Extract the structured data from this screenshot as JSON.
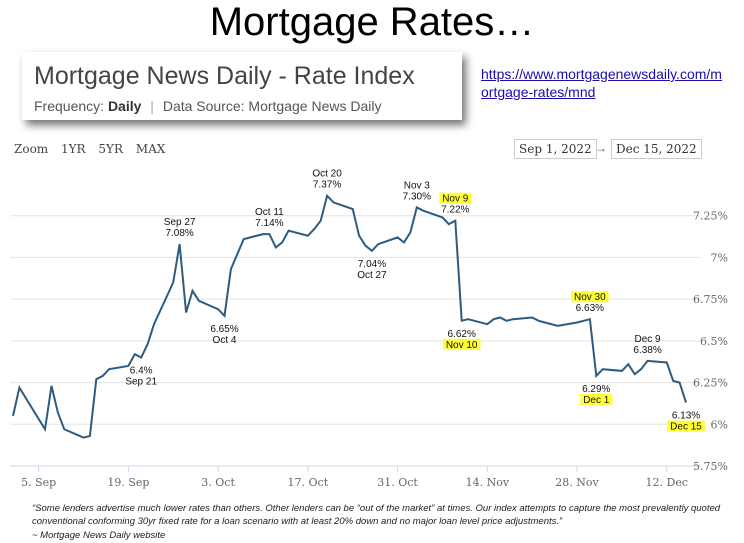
{
  "slide_title": "Mortgage Rates…",
  "card": {
    "title": "Mortgage News Daily - Rate Index",
    "frequency_label": "Frequency:",
    "frequency_value": "Daily",
    "source_label": "Data Source: Mortgage News Daily"
  },
  "link_text": "https://www.mortgagenewsdaily.com/mortgage-rates/mnd",
  "zoom": {
    "label": "Zoom",
    "options": [
      "1YR",
      "5YR",
      "MAX"
    ]
  },
  "date_range": {
    "from": "Sep 1, 2022",
    "arrow": "→",
    "to": "Dec 15, 2022"
  },
  "chart_data": {
    "type": "line",
    "color": "#2e5b80",
    "highlight_color": "#ffff33",
    "grid": true,
    "ylim": [
      5.75,
      7.5
    ],
    "y_ticks": [
      5.75,
      6.0,
      6.25,
      6.5,
      6.75,
      7.0,
      7.25
    ],
    "y_tick_labels": [
      "5.75%",
      "6%",
      "6.25%",
      "6.5%",
      "6.75%",
      "7%",
      "7.25%"
    ],
    "x_ticks": [
      "2022-09-05",
      "2022-09-19",
      "2022-10-03",
      "2022-10-17",
      "2022-10-31",
      "2022-11-14",
      "2022-11-28",
      "2022-12-12"
    ],
    "x_tick_labels": [
      "5. Sep",
      "19. Sep",
      "3. Oct",
      "17. Oct",
      "31. Oct",
      "14. Nov",
      "28. Nov",
      "12. Dec"
    ],
    "points": [
      {
        "date": "2022-09-01",
        "y": 6.05
      },
      {
        "date": "2022-09-02",
        "y": 6.22
      },
      {
        "date": "2022-09-06",
        "y": 5.97
      },
      {
        "date": "2022-09-07",
        "y": 6.23
      },
      {
        "date": "2022-09-08",
        "y": 6.07
      },
      {
        "date": "2022-09-09",
        "y": 5.97
      },
      {
        "date": "2022-09-12",
        "y": 5.92
      },
      {
        "date": "2022-09-13",
        "y": 5.93
      },
      {
        "date": "2022-09-14",
        "y": 6.27
      },
      {
        "date": "2022-09-15",
        "y": 6.29
      },
      {
        "date": "2022-09-16",
        "y": 6.33
      },
      {
        "date": "2022-09-19",
        "y": 6.35
      },
      {
        "date": "2022-09-20",
        "y": 6.42
      },
      {
        "date": "2022-09-21",
        "y": 6.4
      },
      {
        "date": "2022-09-22",
        "y": 6.48
      },
      {
        "date": "2022-09-23",
        "y": 6.6
      },
      {
        "date": "2022-09-26",
        "y": 6.85
      },
      {
        "date": "2022-09-27",
        "y": 7.08
      },
      {
        "date": "2022-09-28",
        "y": 6.67
      },
      {
        "date": "2022-09-29",
        "y": 6.8
      },
      {
        "date": "2022-09-30",
        "y": 6.74
      },
      {
        "date": "2022-10-03",
        "y": 6.69
      },
      {
        "date": "2022-10-04",
        "y": 6.65
      },
      {
        "date": "2022-10-05",
        "y": 6.93
      },
      {
        "date": "2022-10-06",
        "y": 7.02
      },
      {
        "date": "2022-10-07",
        "y": 7.11
      },
      {
        "date": "2022-10-10",
        "y": 7.14
      },
      {
        "date": "2022-10-11",
        "y": 7.14
      },
      {
        "date": "2022-10-12",
        "y": 7.06
      },
      {
        "date": "2022-10-13",
        "y": 7.09
      },
      {
        "date": "2022-10-14",
        "y": 7.16
      },
      {
        "date": "2022-10-17",
        "y": 7.13
      },
      {
        "date": "2022-10-18",
        "y": 7.17
      },
      {
        "date": "2022-10-19",
        "y": 7.22
      },
      {
        "date": "2022-10-20",
        "y": 7.37
      },
      {
        "date": "2022-10-21",
        "y": 7.33
      },
      {
        "date": "2022-10-24",
        "y": 7.29
      },
      {
        "date": "2022-10-25",
        "y": 7.13
      },
      {
        "date": "2022-10-26",
        "y": 7.07
      },
      {
        "date": "2022-10-27",
        "y": 7.04
      },
      {
        "date": "2022-10-28",
        "y": 7.08
      },
      {
        "date": "2022-10-31",
        "y": 7.12
      },
      {
        "date": "2022-11-01",
        "y": 7.09
      },
      {
        "date": "2022-11-02",
        "y": 7.15
      },
      {
        "date": "2022-11-03",
        "y": 7.3
      },
      {
        "date": "2022-11-04",
        "y": 7.28
      },
      {
        "date": "2022-11-07",
        "y": 7.24
      },
      {
        "date": "2022-11-08",
        "y": 7.2
      },
      {
        "date": "2022-11-09",
        "y": 7.22
      },
      {
        "date": "2022-11-10",
        "y": 6.62
      },
      {
        "date": "2022-11-11",
        "y": 6.63
      },
      {
        "date": "2022-11-14",
        "y": 6.6
      },
      {
        "date": "2022-11-15",
        "y": 6.63
      },
      {
        "date": "2022-11-16",
        "y": 6.64
      },
      {
        "date": "2022-11-17",
        "y": 6.62
      },
      {
        "date": "2022-11-18",
        "y": 6.63
      },
      {
        "date": "2022-11-21",
        "y": 6.64
      },
      {
        "date": "2022-11-22",
        "y": 6.62
      },
      {
        "date": "2022-11-23",
        "y": 6.61
      },
      {
        "date": "2022-11-25",
        "y": 6.59
      },
      {
        "date": "2022-11-28",
        "y": 6.61
      },
      {
        "date": "2022-11-30",
        "y": 6.63
      },
      {
        "date": "2022-12-01",
        "y": 6.29
      },
      {
        "date": "2022-12-02",
        "y": 6.33
      },
      {
        "date": "2022-12-05",
        "y": 6.32
      },
      {
        "date": "2022-12-06",
        "y": 6.36
      },
      {
        "date": "2022-12-07",
        "y": 6.3
      },
      {
        "date": "2022-12-08",
        "y": 6.33
      },
      {
        "date": "2022-12-09",
        "y": 6.38
      },
      {
        "date": "2022-12-12",
        "y": 6.37
      },
      {
        "date": "2022-12-13",
        "y": 6.26
      },
      {
        "date": "2022-12-14",
        "y": 6.25
      },
      {
        "date": "2022-12-15",
        "y": 6.13
      }
    ],
    "annotations": [
      {
        "date": "2022-09-21",
        "y": 6.4,
        "lines": [
          "6.4%",
          "Sep 21"
        ],
        "pos": "below",
        "highlight": []
      },
      {
        "date": "2022-09-27",
        "y": 7.08,
        "lines": [
          "Sep 27",
          "7.08%"
        ],
        "pos": "above",
        "highlight": []
      },
      {
        "date": "2022-10-04",
        "y": 6.65,
        "lines": [
          "6.65%",
          "Oct 4"
        ],
        "pos": "below",
        "highlight": []
      },
      {
        "date": "2022-10-11",
        "y": 7.14,
        "lines": [
          "Oct 11",
          "7.14%"
        ],
        "pos": "above",
        "highlight": []
      },
      {
        "date": "2022-10-20",
        "y": 7.37,
        "lines": [
          "Oct 20",
          "7.37%"
        ],
        "pos": "above",
        "highlight": []
      },
      {
        "date": "2022-10-27",
        "y": 7.04,
        "lines": [
          "7.04%",
          "Oct 27"
        ],
        "pos": "below",
        "highlight": []
      },
      {
        "date": "2022-11-03",
        "y": 7.3,
        "lines": [
          "Nov 3",
          "7.30%"
        ],
        "pos": "above",
        "highlight": []
      },
      {
        "date": "2022-11-09",
        "y": 7.22,
        "lines": [
          "Nov 9",
          "7.22%"
        ],
        "pos": "above",
        "highlight": [
          0
        ]
      },
      {
        "date": "2022-11-10",
        "y": 6.62,
        "lines": [
          "6.62%",
          "Nov 10"
        ],
        "pos": "below",
        "highlight": [
          1
        ]
      },
      {
        "date": "2022-11-30",
        "y": 6.63,
        "lines": [
          "Nov 30",
          "6.63%"
        ],
        "pos": "above",
        "highlight": [
          0
        ]
      },
      {
        "date": "2022-12-01",
        "y": 6.29,
        "lines": [
          "6.29%",
          "Dec 1"
        ],
        "pos": "below",
        "highlight": [
          1
        ]
      },
      {
        "date": "2022-12-09",
        "y": 6.38,
        "lines": [
          "Dec 9",
          "6.38%"
        ],
        "pos": "above",
        "highlight": []
      },
      {
        "date": "2022-12-15",
        "y": 6.13,
        "lines": [
          "6.13%",
          "Dec 15"
        ],
        "pos": "below",
        "highlight": [
          1
        ]
      }
    ]
  },
  "footnote": "“Some lenders advertise much lower rates than others. Other lenders can be “out of the market” at times. Our index attempts to capture the most prevalently quoted conventional conforming 30yr fixed rate for a loan scenario with at least 20% down and no major loan level price adjustments.”",
  "credit": "~ Mortgage News Daily website"
}
